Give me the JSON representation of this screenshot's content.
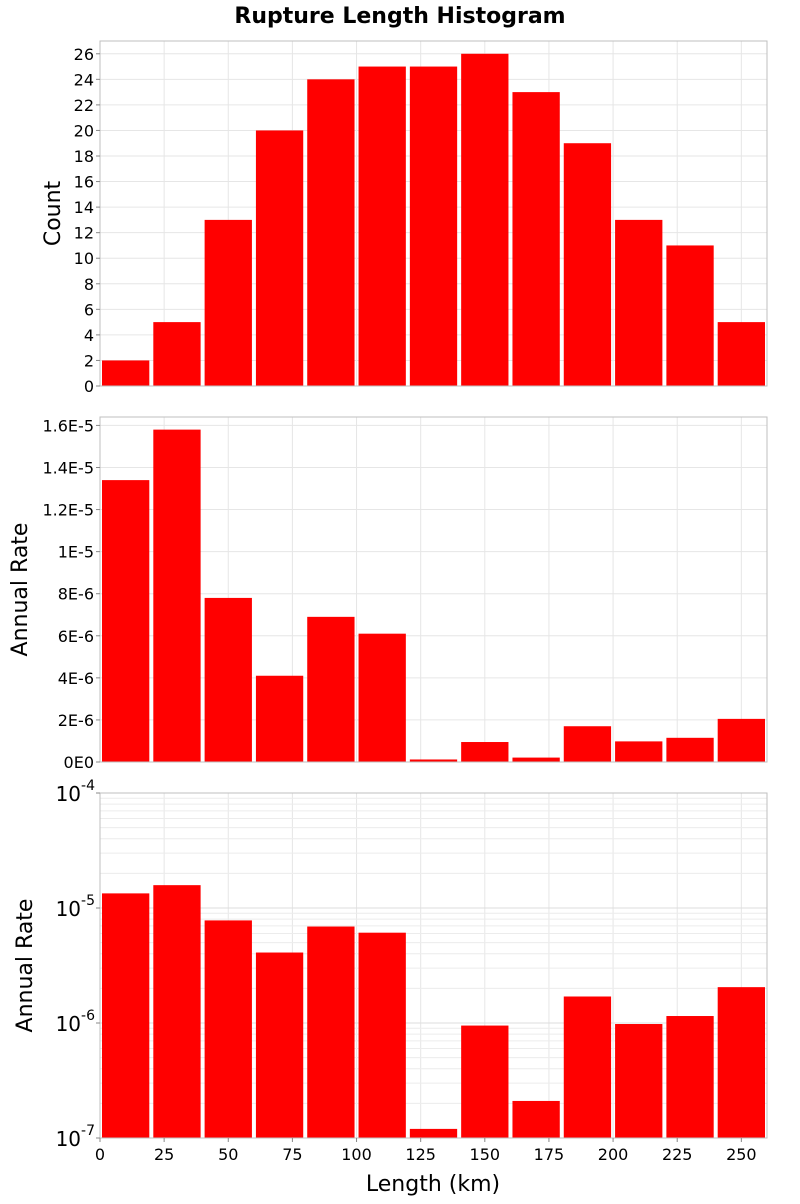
{
  "chart_data": {
    "type": "bar",
    "title": "Rupture Length Histogram",
    "xlabel": "Length (km)",
    "xlim": [
      0,
      260
    ],
    "x_ticks": [
      0,
      25,
      50,
      75,
      100,
      125,
      150,
      175,
      200,
      225,
      250
    ],
    "bin_width": 20,
    "bin_centers": [
      10,
      30,
      50,
      70,
      90,
      110,
      130,
      150,
      170,
      190,
      210,
      230,
      250
    ],
    "bar_color": "#ff0000",
    "grid": true,
    "panels": [
      {
        "ylabel": "Count",
        "scale": "linear",
        "ylim": [
          0,
          27
        ],
        "y_ticks": [
          0,
          2,
          4,
          6,
          8,
          10,
          12,
          14,
          16,
          18,
          20,
          22,
          24,
          26
        ],
        "y_tick_labels": [
          "0",
          "2",
          "4",
          "6",
          "8",
          "10",
          "12",
          "14",
          "16",
          "18",
          "20",
          "22",
          "24",
          "26"
        ],
        "values": [
          2,
          5,
          13,
          20,
          24,
          25,
          25,
          26,
          23,
          19,
          13,
          11,
          5
        ]
      },
      {
        "ylabel": "Annual Rate",
        "scale": "linear",
        "ylim": [
          0,
          1.64e-05
        ],
        "y_ticks": [
          0,
          2e-06,
          4e-06,
          6e-06,
          8e-06,
          1e-05,
          1.2e-05,
          1.4e-05,
          1.6e-05
        ],
        "y_tick_labels": [
          "0E0",
          "2E-6",
          "4E-6",
          "6E-6",
          "8E-6",
          "1E-5",
          "1.2E-5",
          "1.4E-5",
          "1.6E-5"
        ],
        "values": [
          1.34e-05,
          1.58e-05,
          7.8e-06,
          4.1e-06,
          6.9e-06,
          6.1e-06,
          1.2e-07,
          9.5e-07,
          2.1e-07,
          1.7e-06,
          9.8e-07,
          1.15e-06,
          2.05e-06
        ]
      },
      {
        "ylabel": "Annual Rate",
        "scale": "log",
        "ylim": [
          1e-07,
          0.0001
        ],
        "y_ticks": [
          1e-07,
          1e-06,
          1e-05,
          0.0001
        ],
        "y_tick_labels": [
          {
            "base": "10",
            "exp": "-7"
          },
          {
            "base": "10",
            "exp": "-6"
          },
          {
            "base": "10",
            "exp": "-5"
          },
          {
            "base": "10",
            "exp": "-4"
          }
        ],
        "values": [
          1.34e-05,
          1.58e-05,
          7.8e-06,
          4.1e-06,
          6.9e-06,
          6.1e-06,
          1.2e-07,
          9.5e-07,
          2.1e-07,
          1.7e-06,
          9.8e-07,
          1.15e-06,
          2.05e-06
        ]
      }
    ]
  }
}
